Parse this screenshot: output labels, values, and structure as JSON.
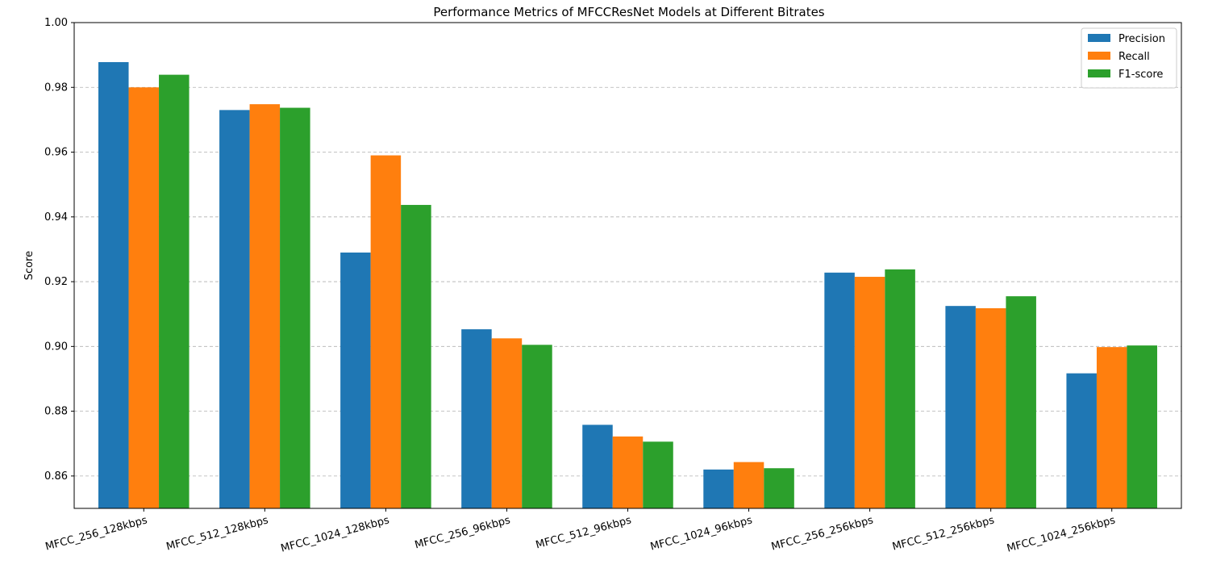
{
  "chart_data": {
    "type": "bar",
    "title": "Performance Metrics of MFCCResNet Models at Different Bitrates",
    "xlabel": "",
    "ylabel": "Score",
    "ylim": [
      0.85,
      1.0
    ],
    "yticks": [
      "0.86",
      "0.88",
      "0.90",
      "0.92",
      "0.94",
      "0.96",
      "0.98",
      "1.00"
    ],
    "grid": "y-dashed",
    "legend_position": "top-right",
    "categories": [
      "MFCC_256_128kbps",
      "MFCC_512_128kbps",
      "MFCC_1024_128kbps",
      "MFCC_256_96kbps",
      "MFCC_512_96kbps",
      "MFCC_1024_96kbps",
      "MFCC_256_256kbps",
      "MFCC_512_256kbps",
      "MFCC_1024_256kbps"
    ],
    "series": [
      {
        "name": "Precision",
        "color": "#1f77b4",
        "values": [
          0.9878,
          0.973,
          0.929,
          0.9053,
          0.8758,
          0.862,
          0.9228,
          0.9125,
          0.8917
        ]
      },
      {
        "name": "Recall",
        "color": "#ff7f0e",
        "values": [
          0.98,
          0.9748,
          0.959,
          0.9025,
          0.8722,
          0.8643,
          0.9215,
          0.9118,
          0.8998
        ]
      },
      {
        "name": "F1-score",
        "color": "#2ca02c",
        "values": [
          0.9839,
          0.9737,
          0.9437,
          0.9005,
          0.8706,
          0.8624,
          0.9238,
          0.9155,
          0.9003
        ]
      }
    ]
  }
}
